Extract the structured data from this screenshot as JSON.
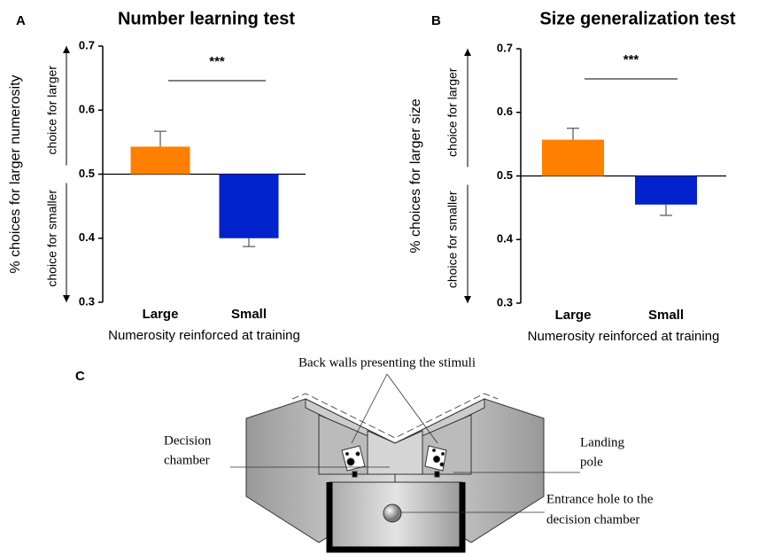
{
  "chart_data": [
    {
      "type": "bar",
      "panel": "A",
      "title": "Number learning test",
      "ylabel": "% choices for larger numerosity",
      "ylabel_upper": "choice for larger",
      "ylabel_lower": "choice for smaller",
      "xlabel": "Numerosity reinforced at training",
      "categories": [
        "Large",
        "Small"
      ],
      "values": [
        0.543,
        0.4
      ],
      "errors": [
        0.024,
        0.013
      ],
      "colors": [
        "#ff8000",
        "#0022cc"
      ],
      "ylim": [
        0.3,
        0.7
      ],
      "yticks": [
        0.3,
        0.4,
        0.5,
        0.6,
        0.7
      ],
      "baseline": 0.5,
      "annotation": "***"
    },
    {
      "type": "bar",
      "panel": "B",
      "title": "Size generalization test",
      "ylabel": "% choices for larger size",
      "ylabel_upper": "choice for larger",
      "ylabel_lower": "choice for smaller",
      "xlabel": "Numerosity reinforced at training",
      "categories": [
        "Large",
        "Small"
      ],
      "values": [
        0.557,
        0.455
      ],
      "errors": [
        0.018,
        0.017
      ],
      "colors": [
        "#ff8000",
        "#0022cc"
      ],
      "ylim": [
        0.3,
        0.7
      ],
      "yticks": [
        0.3,
        0.4,
        0.5,
        0.6,
        0.7
      ],
      "baseline": 0.5,
      "annotation": "***"
    }
  ],
  "diagram": {
    "panel": "C",
    "labels": {
      "back_walls": "Back walls presenting the stimuli",
      "decision_chamber": [
        "Decision",
        "chamber"
      ],
      "landing_pole": [
        "Landing",
        "pole"
      ],
      "entrance_hole": [
        "Entrance hole to the",
        "decision chamber"
      ]
    }
  }
}
